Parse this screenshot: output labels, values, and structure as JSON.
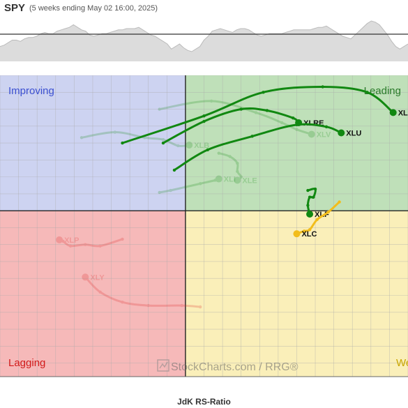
{
  "header": {
    "symbol": "SPY",
    "subtitle": "(5 weeks ending May 02 16:00, 2025)"
  },
  "quadrants": {
    "improving": "Improving",
    "leading": "Leading",
    "lagging": "Lagging",
    "weakening": "Weakening"
  },
  "watermark": "StockCharts.com / RRG®",
  "chart_data": {
    "type": "scatter",
    "xlabel": "JdK RS-Ratio",
    "x_ticks": [
      95,
      96,
      97,
      98,
      99,
      100,
      101,
      102,
      103,
      104,
      105
    ],
    "xlim": [
      95,
      106
    ],
    "ylim": [
      97.55,
      102.0
    ],
    "center": [
      100,
      100
    ],
    "colors": {
      "improving": "#cdd3f1",
      "leading": "#bfe0b9",
      "lagging": "#f6b9b9",
      "weakening": "#faefb9",
      "grid": "#aaaaaa",
      "axis": "#222222",
      "spark_fill": "#dcdcdc",
      "spark_line": "#555555"
    },
    "series": [
      {
        "name": "XLK",
        "color": "#118811",
        "faded": false,
        "showLabel": true,
        "points": [
          [
            98.3,
            101.0
          ],
          [
            100.5,
            101.4
          ],
          [
            102.1,
            101.75
          ],
          [
            103.7,
            101.83
          ],
          [
            104.9,
            101.75
          ],
          [
            105.6,
            101.45
          ]
        ]
      },
      {
        "name": "XLRE",
        "color": "#118811",
        "faded": false,
        "showLabel": true,
        "points": [
          [
            99.4,
            101.0
          ],
          [
            100.5,
            101.32
          ],
          [
            101.5,
            101.5
          ],
          [
            102.2,
            101.48
          ],
          [
            102.9,
            101.37
          ],
          [
            103.05,
            101.3
          ]
        ]
      },
      {
        "name": "XLU",
        "color": "#118811",
        "faded": false,
        "showLabel": true,
        "points": [
          [
            99.7,
            100.6
          ],
          [
            100.6,
            100.9
          ],
          [
            101.8,
            101.1
          ],
          [
            103.0,
            101.27
          ],
          [
            103.8,
            101.24
          ],
          [
            104.2,
            101.15
          ]
        ]
      },
      {
        "name": "XLF",
        "color": "#118811",
        "faded": false,
        "showLabel": true,
        "points": [
          [
            103.3,
            100.3
          ],
          [
            103.5,
            100.32
          ],
          [
            103.45,
            100.2
          ],
          [
            103.35,
            100.2
          ],
          [
            103.3,
            100.08
          ],
          [
            103.35,
            99.95
          ]
        ]
      },
      {
        "name": "XLC",
        "color": "#f2bd1a",
        "faded": false,
        "showLabel": true,
        "points": [
          [
            104.15,
            100.13
          ],
          [
            103.85,
            99.98
          ],
          [
            103.55,
            99.87
          ],
          [
            103.35,
            99.72
          ],
          [
            103.2,
            99.7
          ],
          [
            103.0,
            99.66
          ]
        ]
      },
      {
        "name": "XLV",
        "color": "#118811",
        "faded": true,
        "showLabel": true,
        "points": [
          [
            99.3,
            101.5
          ],
          [
            100.7,
            101.62
          ],
          [
            101.9,
            101.45
          ],
          [
            102.6,
            101.3
          ],
          [
            103.0,
            101.2
          ],
          [
            103.4,
            101.13
          ]
        ]
      },
      {
        "name": "XLB",
        "color": "#118811",
        "faded": true,
        "showLabel": true,
        "points": [
          [
            97.2,
            101.08
          ],
          [
            98.1,
            101.16
          ],
          [
            98.9,
            101.08
          ],
          [
            99.4,
            101.05
          ],
          [
            99.8,
            100.96
          ],
          [
            100.1,
            100.97
          ]
        ]
      },
      {
        "name": "XLI",
        "color": "#118811",
        "faded": true,
        "showLabel": true,
        "points": [
          [
            99.3,
            100.27
          ],
          [
            99.6,
            100.3
          ],
          [
            100.0,
            100.35
          ],
          [
            100.4,
            100.4
          ],
          [
            100.8,
            100.45
          ],
          [
            100.9,
            100.47
          ]
        ]
      },
      {
        "name": "XLE",
        "color": "#118811",
        "faded": true,
        "showLabel": true,
        "points": [
          [
            100.9,
            100.85
          ],
          [
            101.2,
            100.8
          ],
          [
            101.4,
            100.7
          ],
          [
            101.4,
            100.58
          ],
          [
            101.5,
            100.5
          ],
          [
            101.4,
            100.45
          ]
        ]
      },
      {
        "name": "XLP",
        "color": "#dd2222",
        "faded": true,
        "showLabel": true,
        "points": [
          [
            98.3,
            99.58
          ],
          [
            97.7,
            99.48
          ],
          [
            97.3,
            99.5
          ],
          [
            96.9,
            99.48
          ],
          [
            96.7,
            99.55
          ],
          [
            96.6,
            99.57
          ]
        ]
      },
      {
        "name": "XLY",
        "color": "#dd2222",
        "faded": true,
        "showLabel": true,
        "points": [
          [
            100.4,
            98.58
          ],
          [
            99.9,
            98.6
          ],
          [
            99.0,
            98.6
          ],
          [
            98.3,
            98.65
          ],
          [
            97.7,
            98.8
          ],
          [
            97.3,
            99.02
          ]
        ]
      }
    ]
  },
  "spark": [
    22,
    21,
    19,
    17,
    17,
    18,
    16,
    15,
    15,
    14,
    12,
    11,
    12,
    12,
    10,
    9,
    8,
    7,
    5,
    7,
    9,
    10,
    13,
    14,
    13,
    12,
    12,
    11,
    10,
    9,
    9,
    8,
    8,
    8,
    7,
    9,
    11,
    13,
    14,
    16,
    18,
    20,
    24,
    22,
    20,
    23,
    25,
    26,
    24,
    22,
    17,
    14,
    10,
    9,
    8,
    9,
    10,
    11,
    9,
    8,
    8,
    9,
    11,
    13,
    14,
    13,
    12,
    12,
    12,
    12,
    11,
    10,
    9,
    9,
    9,
    9,
    9,
    8,
    7,
    7,
    6,
    8,
    10,
    12,
    14,
    15,
    16,
    13,
    10,
    7,
    4,
    2,
    3,
    5,
    9,
    13,
    18,
    22,
    24,
    22,
    20
  ]
}
